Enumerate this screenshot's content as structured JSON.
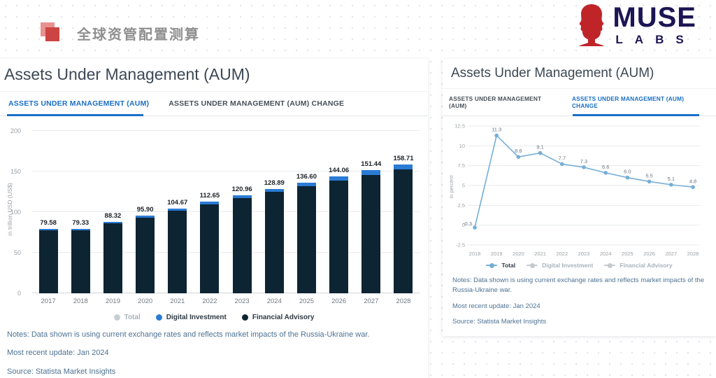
{
  "theme": {
    "accent_blue": "#1a6fc6",
    "bar_dark": "#0d2433",
    "cap_blue": "#2b7bd4",
    "line_blue": "#74aed6",
    "note_color": "#4d7292"
  },
  "header": {
    "cn_title": "全球资管配置测算",
    "logo": {
      "line1": "MUSE",
      "line2": "LABS"
    }
  },
  "left_panel": {
    "title": "Assets Under Management (AUM)",
    "tabs": [
      {
        "label": "ASSETS UNDER MANAGEMENT (AUM)",
        "active": true
      },
      {
        "label": "ASSETS UNDER MANAGEMENT (AUM) CHANGE",
        "active": false
      }
    ],
    "legend": [
      "Total",
      "Digital Investment",
      "Financial Advisory"
    ],
    "notes": [
      "Notes: Data shown is using current exchange rates and reflects market impacts of the Russia-Ukraine war.",
      "Most recent update: Jan 2024",
      "Source: Statista Market Insights"
    ]
  },
  "right_panel": {
    "title": "Assets Under Management (AUM)",
    "tabs": [
      {
        "label": "ASSETS UNDER MANAGEMENT (AUM)",
        "active": false
      },
      {
        "label": "ASSETS UNDER MANAGEMENT (AUM) CHANGE",
        "active": true
      }
    ],
    "legend": [
      "Total",
      "Digital Investment",
      "Financial Advisory"
    ],
    "notes": [
      "Notes: Data shown is using current exchange rates and reflects market impacts of the Russia-Ukraine war.",
      "Most recent update: Jan 2024",
      "Source: Statista Market Insights"
    ]
  },
  "chart_data": [
    {
      "type": "bar",
      "title": "Assets Under Management (AUM)",
      "categories": [
        "2017",
        "2018",
        "2019",
        "2020",
        "2021",
        "2022",
        "2023",
        "2024",
        "2025",
        "2026",
        "2027",
        "2028"
      ],
      "totals": [
        79.58,
        79.33,
        88.32,
        95.9,
        104.67,
        112.65,
        120.96,
        128.89,
        136.6,
        144.06,
        151.44,
        158.71
      ],
      "series": [
        {
          "name": "Financial Advisory",
          "color": "#0d2433",
          "values": [
            77.78,
            77.33,
            86.02,
            93.2,
            101.57,
            109.15,
            117.06,
            124.59,
            131.9,
            138.96,
            145.94,
            152.71
          ],
          "estimated_from_pixels": true
        },
        {
          "name": "Digital Investment",
          "color": "#2b7bd4",
          "values": [
            1.8,
            2.0,
            2.3,
            2.7,
            3.1,
            3.5,
            3.9,
            4.3,
            4.7,
            5.1,
            5.5,
            6.0
          ],
          "estimated_from_pixels": true
        }
      ],
      "ylabel": "in trillion USD (US$)",
      "ylim": [
        0,
        200
      ],
      "yticks": [
        0,
        50,
        100,
        150,
        200
      ],
      "grid": true,
      "legend_position": "bottom"
    },
    {
      "type": "line",
      "title": "Assets Under Management (AUM) change",
      "x": [
        "2018",
        "2019",
        "2020",
        "2021",
        "2022",
        "2023",
        "2024",
        "2025",
        "2026",
        "2027",
        "2028"
      ],
      "series_name": "Total",
      "values": [
        -0.3,
        11.3,
        8.6,
        9.1,
        7.7,
        7.3,
        6.6,
        6.0,
        5.5,
        5.1,
        4.8
      ],
      "color": "#74aed6",
      "ylabel": "in percent",
      "ylim": [
        -2.5,
        12.5
      ],
      "yticks": [
        -2.5,
        0,
        2.5,
        5,
        7.5,
        10,
        12.5
      ],
      "grid": true,
      "legend_position": "bottom"
    }
  ]
}
